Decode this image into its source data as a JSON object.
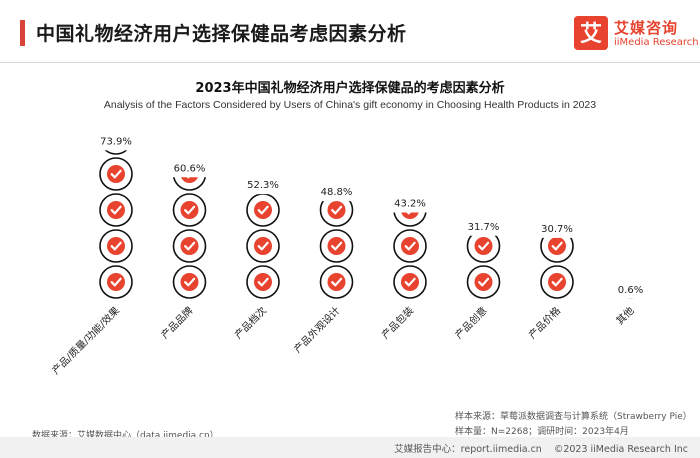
{
  "header": {
    "title": "中国礼物经济用户选择保健品考虑因素分析",
    "logo_cn": "艾媒咨询",
    "logo_en": "iiMedia Research",
    "logo_mark": "艾"
  },
  "chart_data": {
    "type": "bar",
    "title": "2023年中国礼物经济用户选择保健品的考虑因素分析",
    "subtitle": "Analysis of the Factors Considered by Users of China's gift economy in Choosing Health Products in 2023",
    "categories": [
      "产品/质量/功能/效果",
      "产品品牌",
      "产品档次",
      "产品外观设计",
      "产品包装",
      "产品创意",
      "产品价格",
      "其他"
    ],
    "values": [
      73.9,
      60.6,
      52.3,
      48.8,
      43.2,
      31.7,
      30.7,
      0.6
    ],
    "value_labels": [
      "73.9%",
      "60.6%",
      "52.3%",
      "48.8%",
      "43.2%",
      "31.7%",
      "30.7%",
      "0.6%"
    ],
    "unit": "%",
    "ylim": [
      0,
      80
    ],
    "mark": "stacked circles with check marks",
    "colors": {
      "mark": "#e8432f",
      "circle_stroke": "#111111"
    }
  },
  "notes": {
    "sample_source": "样本来源：草莓派数据调查与计算系统（Strawberry Pie）",
    "sample_size": "样本量：N=2268；调研时间：2023年4月",
    "data_source": "数据来源：艾媒数据中心（data.iimedia.cn）"
  },
  "footer": {
    "site": "艾媒报告中心：report.iimedia.cn",
    "copyright": "©2023  iiMedia Research  Inc"
  }
}
